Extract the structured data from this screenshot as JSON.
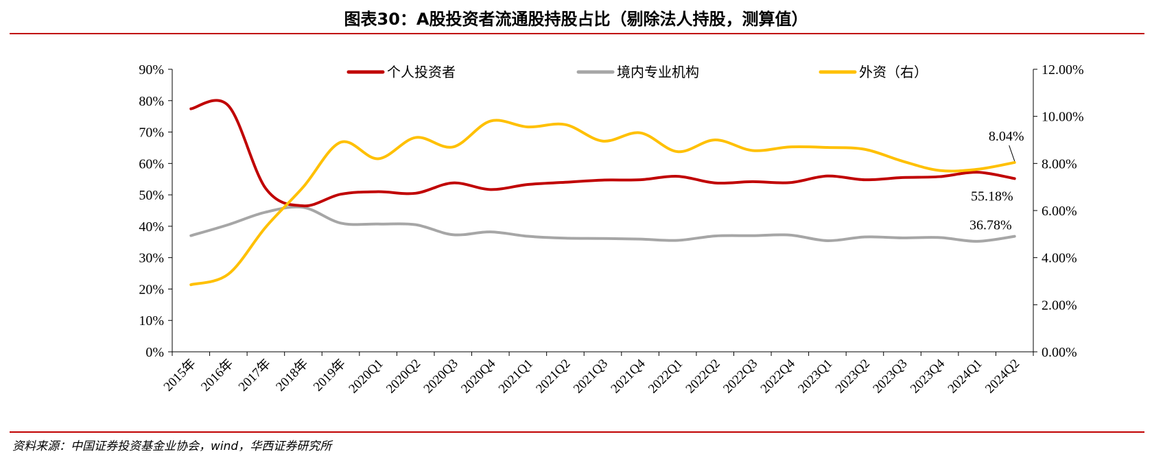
{
  "title": "图表30：A股投资者流通股持股占比（剔除法人持股，测算值）",
  "source": "资料来源：中国证券投资基金业协会，wind，华西证券研究所",
  "chart_data": {
    "type": "line",
    "title": "图表30：A股投资者流通股持股占比（剔除法人持股，测算值）",
    "categories": [
      "2015年",
      "2016年",
      "2017年",
      "2018年",
      "2019年",
      "2020Q1",
      "2020Q2",
      "2020Q3",
      "2020Q4",
      "2021Q1",
      "2021Q2",
      "2021Q3",
      "2021Q4",
      "2022Q1",
      "2022Q2",
      "2022Q3",
      "2022Q4",
      "2023Q1",
      "2023Q2",
      "2023Q3",
      "2023Q4",
      "2024Q1",
      "2024Q2"
    ],
    "y_left": {
      "range": [
        0,
        90
      ],
      "ticks": [
        "0%",
        "10%",
        "20%",
        "30%",
        "40%",
        "50%",
        "60%",
        "70%",
        "80%",
        "90%"
      ]
    },
    "y_right": {
      "range": [
        0,
        12
      ],
      "ticks": [
        "0.00%",
        "2.00%",
        "4.00%",
        "6.00%",
        "8.00%",
        "10.00%",
        "12.00%"
      ]
    },
    "legend_position": "top",
    "series": [
      {
        "name": "个人投资者",
        "axis": "left",
        "color": "#c00000",
        "values": [
          77.4,
          78.4,
          52,
          46.5,
          50.2,
          51,
          50.5,
          53.8,
          51.7,
          53.3,
          54,
          54.7,
          54.8,
          55.9,
          53.8,
          54.2,
          53.9,
          56,
          54.8,
          55.5,
          55.8,
          57.2,
          55.18
        ]
      },
      {
        "name": "境内专业机构",
        "axis": "left",
        "color": "#a6a6a6",
        "values": [
          37,
          40.5,
          44.5,
          46,
          41,
          40.7,
          40.5,
          37.3,
          38.2,
          36.8,
          36.2,
          36.1,
          35.9,
          35.5,
          36.9,
          37,
          37.2,
          35.4,
          36.6,
          36.3,
          36.4,
          35.2,
          36.78
        ]
      },
      {
        "name": "外资（右）",
        "axis": "right",
        "color": "#ffc000",
        "values": [
          2.85,
          3.3,
          5.3,
          7.0,
          8.9,
          8.2,
          9.1,
          8.7,
          9.8,
          9.55,
          9.65,
          8.95,
          9.3,
          8.5,
          9.0,
          8.55,
          8.7,
          8.68,
          8.6,
          8.1,
          7.7,
          7.75,
          8.04
        ]
      }
    ],
    "annotations": [
      {
        "series": "外资（右）",
        "label": "8.04%"
      },
      {
        "series": "个人投资者",
        "label": "55.18%"
      },
      {
        "series": "境内专业机构",
        "label": "36.78%"
      }
    ]
  }
}
